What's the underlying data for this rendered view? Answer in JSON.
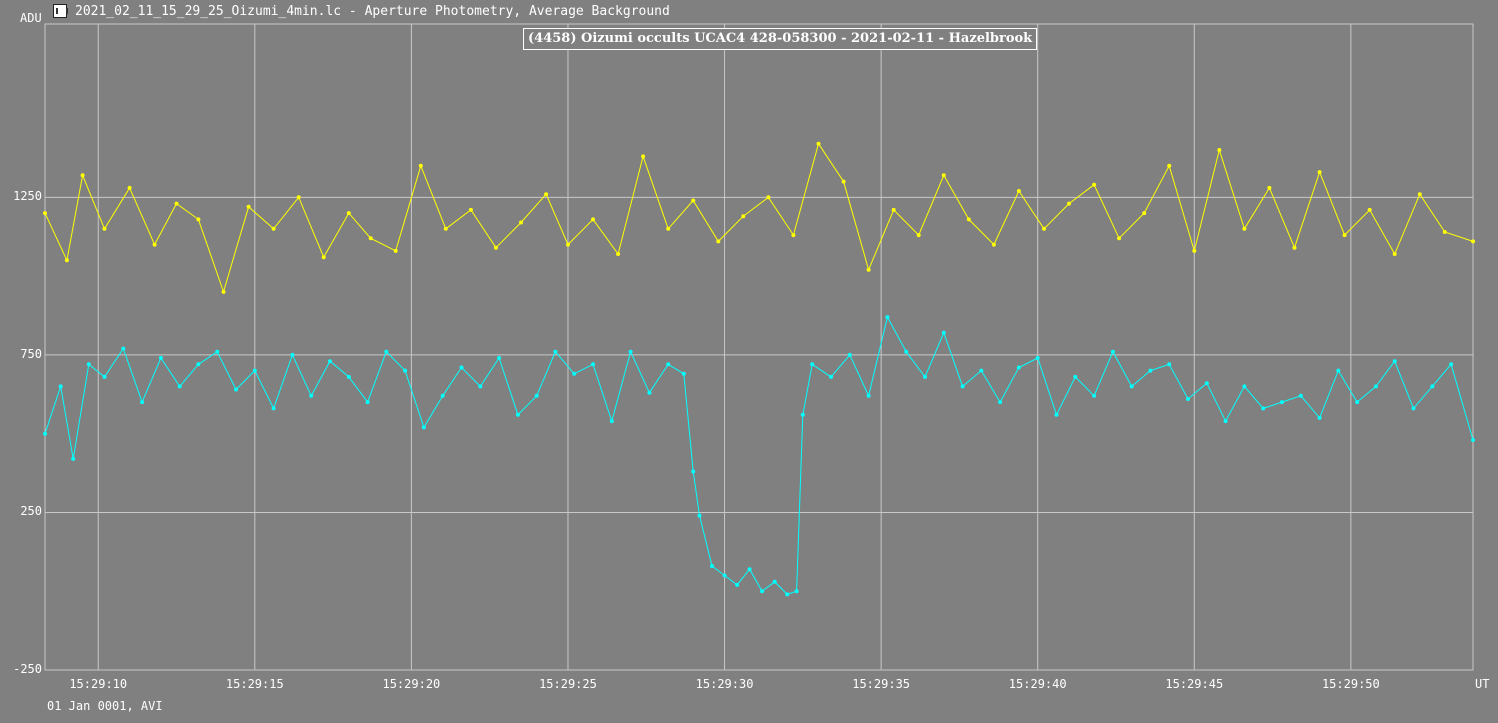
{
  "window": {
    "title": "2021_02_11_15_29_25_Oizumi_4min.lc - Aperture Photometry, Average Background",
    "icon": "lightcurve-app-icon"
  },
  "footer": {
    "date_info": "01 Jan 0001, AVI"
  },
  "colors": {
    "background": "#808080",
    "grid": "#c8c8c8",
    "target": "#00ffff",
    "comparison": "#ffff00"
  },
  "chart_data": {
    "type": "line",
    "title": "(4458) Oizumi occults UCAC4 428-058300 - 2021-02-11 - Hazelbrook",
    "ylabel": "ADU",
    "xlabel": "UT",
    "ylim": [
      -250,
      1800
    ],
    "xlim": [
      "15:29:08.3",
      "15:29:53.9"
    ],
    "grid": true,
    "yticks": [
      "-250",
      "250",
      "750",
      "1250"
    ],
    "yticks_values": [
      -250,
      250,
      750,
      1250
    ],
    "xticks": [
      "15:29:10",
      "15:29:15",
      "15:29:20",
      "15:29:25",
      "15:29:30",
      "15:29:35",
      "15:29:40",
      "15:29:45",
      "15:29:50"
    ],
    "xticks_seconds": [
      10,
      15,
      20,
      25,
      30,
      35,
      40,
      45,
      50
    ],
    "series": [
      {
        "color": "#ffff00",
        "x_seconds": [
          8.3,
          9.0,
          9.5,
          10.2,
          11.0,
          11.8,
          12.5,
          13.2,
          14.0,
          14.8,
          15.6,
          16.4,
          17.2,
          18.0,
          18.7,
          19.5,
          20.3,
          21.1,
          21.9,
          22.7,
          23.5,
          24.3,
          25.0,
          25.8,
          26.6,
          27.4,
          28.2,
          29.0,
          29.8,
          30.6,
          31.4,
          32.2,
          33.0,
          33.8,
          34.6,
          35.4,
          36.2,
          37.0,
          37.8,
          38.6,
          39.4,
          40.2,
          41.0,
          41.8,
          42.6,
          43.4,
          44.2,
          45.0,
          45.8,
          46.6,
          47.4,
          48.2,
          49.0,
          49.8,
          50.6,
          51.4,
          52.2,
          53.0,
          53.9
        ],
        "values": [
          1200,
          1050,
          1320,
          1150,
          1280,
          1100,
          1230,
          1180,
          950,
          1220,
          1150,
          1250,
          1060,
          1200,
          1120,
          1080,
          1350,
          1150,
          1210,
          1090,
          1170,
          1260,
          1100,
          1180,
          1070,
          1380,
          1150,
          1240,
          1110,
          1190,
          1250,
          1130,
          1420,
          1300,
          1020,
          1210,
          1130,
          1320,
          1180,
          1100,
          1270,
          1150,
          1230,
          1290,
          1120,
          1200,
          1350,
          1080,
          1400,
          1150,
          1280,
          1090,
          1330,
          1130,
          1210,
          1070,
          1260,
          1140,
          1110
        ]
      },
      {
        "color": "#00ffff",
        "x_seconds": [
          8.3,
          8.8,
          9.2,
          9.7,
          10.2,
          10.8,
          11.4,
          12.0,
          12.6,
          13.2,
          13.8,
          14.4,
          15.0,
          15.6,
          16.2,
          16.8,
          17.4,
          18.0,
          18.6,
          19.2,
          19.8,
          20.4,
          21.0,
          21.6,
          22.2,
          22.8,
          23.4,
          24.0,
          24.6,
          25.2,
          25.8,
          26.4,
          27.0,
          27.6,
          28.2,
          28.7,
          29.0,
          29.2,
          29.6,
          30.0,
          30.4,
          30.8,
          31.2,
          31.6,
          32.0,
          32.3,
          32.5,
          32.8,
          33.4,
          34.0,
          34.6,
          35.2,
          35.8,
          36.4,
          37.0,
          37.6,
          38.2,
          38.8,
          39.4,
          40.0,
          40.6,
          41.2,
          41.8,
          42.4,
          43.0,
          43.6,
          44.2,
          44.8,
          45.4,
          46.0,
          46.6,
          47.2,
          47.8,
          48.4,
          49.0,
          49.6,
          50.2,
          50.8,
          51.4,
          52.0,
          52.6,
          53.2,
          53.9
        ],
        "values": [
          500,
          650,
          420,
          720,
          680,
          770,
          600,
          740,
          650,
          720,
          760,
          640,
          700,
          580,
          750,
          620,
          730,
          680,
          600,
          760,
          700,
          520,
          620,
          710,
          650,
          740,
          560,
          620,
          760,
          690,
          720,
          540,
          760,
          630,
          720,
          690,
          380,
          240,
          80,
          50,
          20,
          70,
          0,
          30,
          -10,
          0,
          560,
          720,
          680,
          750,
          620,
          870,
          760,
          680,
          820,
          650,
          700,
          600,
          710,
          740,
          560,
          680,
          620,
          760,
          650,
          700,
          720,
          610,
          660,
          540,
          650,
          580,
          600,
          620,
          550,
          700,
          600,
          650,
          730,
          580,
          650,
          720,
          480
        ]
      }
    ]
  }
}
